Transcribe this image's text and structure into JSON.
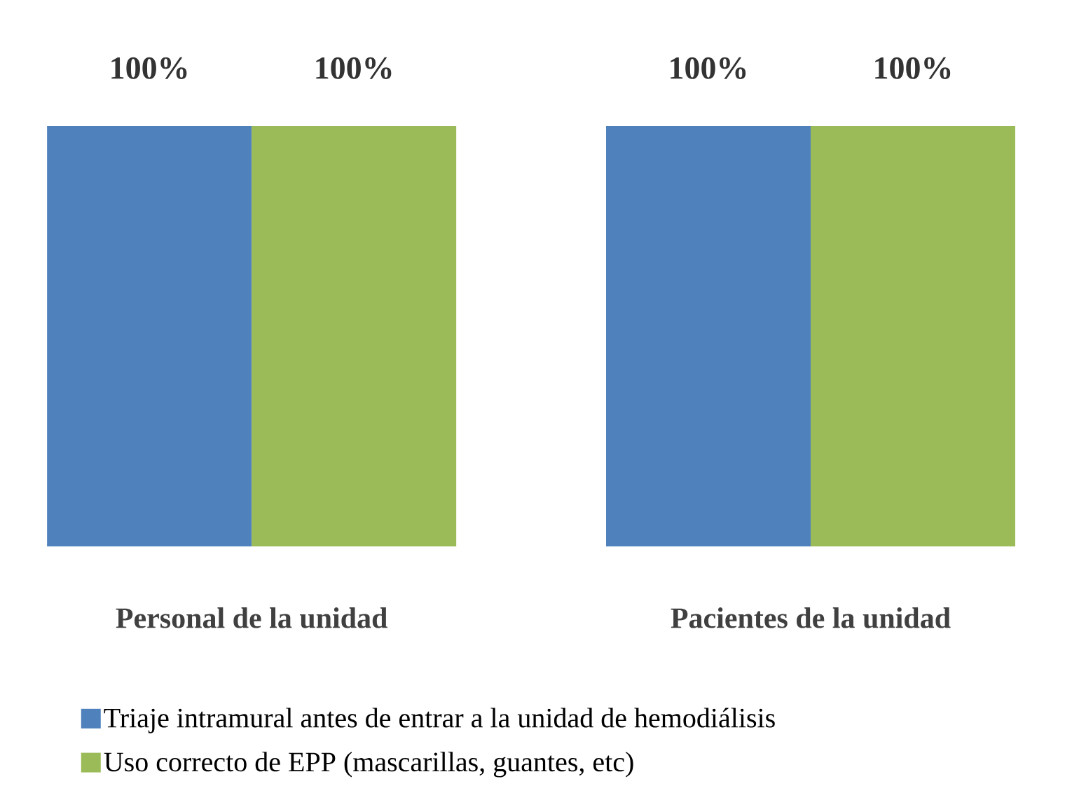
{
  "chart_data": {
    "type": "bar",
    "categories": [
      "Personal de la unidad",
      "Pacientes de la unidad"
    ],
    "series": [
      {
        "name": "Triaje intramural antes de entrar a la unidad de hemodiálisis",
        "color": "#4f81bd",
        "values": [
          100,
          100
        ],
        "value_labels": [
          "100%",
          "100%"
        ]
      },
      {
        "name": "Uso correcto de EPP (mascarillas, guantes, etc)",
        "color": "#9bbb59",
        "values": [
          100,
          100
        ],
        "value_labels": [
          "100%",
          "100%"
        ]
      }
    ],
    "legend": "bottom"
  }
}
